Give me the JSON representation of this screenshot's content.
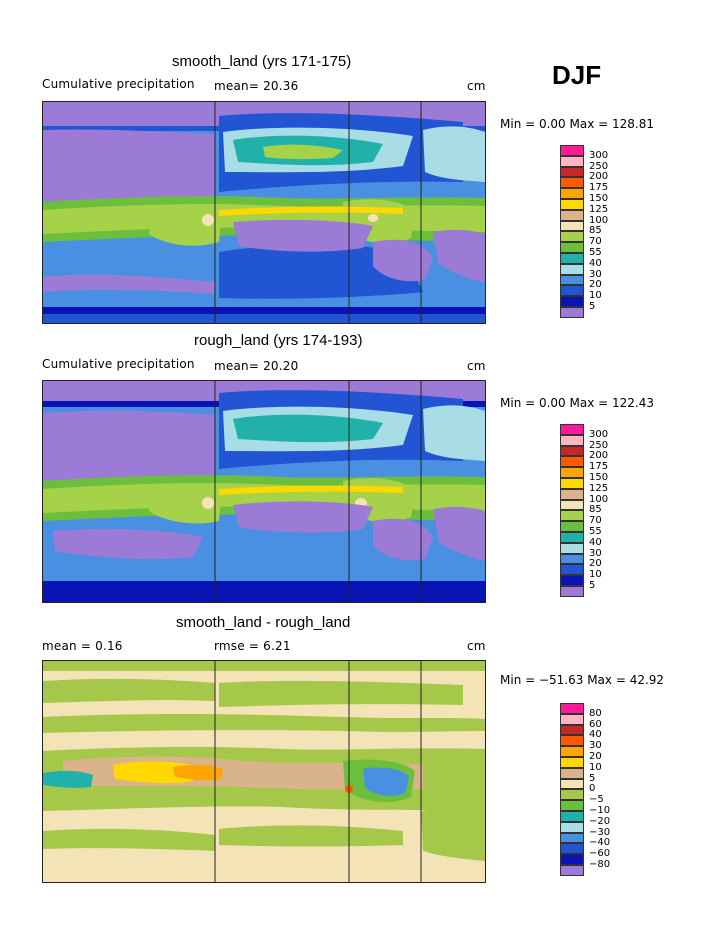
{
  "season": "DJF",
  "panels": [
    {
      "title": "smooth_land (yrs 171-175)",
      "left_label": "Cumulative precipitation",
      "stat1": "mean=  20.36",
      "stat2": "",
      "units": "cm",
      "minmax": "Min =    0.00 Max = 128.81",
      "legend": [
        "300",
        "250",
        "200",
        "175",
        "150",
        "125",
        "100",
        "85",
        "70",
        "55",
        "40",
        "30",
        "20",
        "10",
        "5"
      ]
    },
    {
      "title": "rough_land (yrs 174-193)",
      "left_label": "Cumulative precipitation",
      "stat1": "mean=  20.20",
      "stat2": "",
      "units": "cm",
      "minmax": "Min =    0.00 Max = 122.43",
      "legend": [
        "300",
        "250",
        "200",
        "175",
        "150",
        "125",
        "100",
        "85",
        "70",
        "55",
        "40",
        "30",
        "20",
        "10",
        "5"
      ]
    },
    {
      "title": "smooth_land - rough_land",
      "left_label": "mean =    0.16",
      "stat1": "rmse =    6.21",
      "stat2": "",
      "units": "cm",
      "minmax": "Min = −51.63 Max =   42.92",
      "legend": [
        "80",
        "60",
        "40",
        "30",
        "20",
        "10",
        "5",
        "0",
        "−5",
        "−10",
        "−20",
        "−30",
        "−40",
        "−60",
        "−80"
      ]
    }
  ],
  "colors": {
    "prec": [
      "#ff1a9a",
      "#ffb6c1",
      "#c62828",
      "#ff5a00",
      "#ffa500",
      "#ffd800",
      "#d9b48a",
      "#f5e3b8",
      "#a6d24a",
      "#6cbf3c",
      "#20b2aa",
      "#a8dde6",
      "#4a90e2",
      "#2255d4",
      "#0a14b4",
      "#9c7bd6"
    ],
    "diff": [
      "#ff1a9a",
      "#ffb6c1",
      "#c62828",
      "#ff5a00",
      "#ffa500",
      "#ffd800",
      "#d9b48a",
      "#f5e3b8",
      "#a6c84a",
      "#6cbf3c",
      "#20b2aa",
      "#a8dde6",
      "#4a90e2",
      "#2255d4",
      "#0a14b4",
      "#9c7bd6"
    ]
  },
  "chart_data": [
    {
      "type": "heatmap",
      "title": "smooth_land (yrs 171-175)",
      "variable": "Cumulative precipitation",
      "mean": 20.36,
      "units": "cm",
      "min": 0.0,
      "max": 128.81,
      "levels": [
        5,
        10,
        20,
        30,
        40,
        55,
        70,
        85,
        100,
        125,
        150,
        175,
        200,
        250,
        300
      ]
    },
    {
      "type": "heatmap",
      "title": "rough_land (yrs 174-193)",
      "variable": "Cumulative precipitation",
      "mean": 20.2,
      "units": "cm",
      "min": 0.0,
      "max": 122.43,
      "levels": [
        5,
        10,
        20,
        30,
        40,
        55,
        70,
        85,
        100,
        125,
        150,
        175,
        200,
        250,
        300
      ]
    },
    {
      "type": "heatmap",
      "title": "smooth_land - rough_land",
      "mean": 0.16,
      "rmse": 6.21,
      "units": "cm",
      "min": -51.63,
      "max": 42.92,
      "levels": [
        -80,
        -60,
        -40,
        -30,
        -20,
        -10,
        -5,
        0,
        5,
        10,
        20,
        30,
        40,
        60,
        80
      ]
    }
  ]
}
